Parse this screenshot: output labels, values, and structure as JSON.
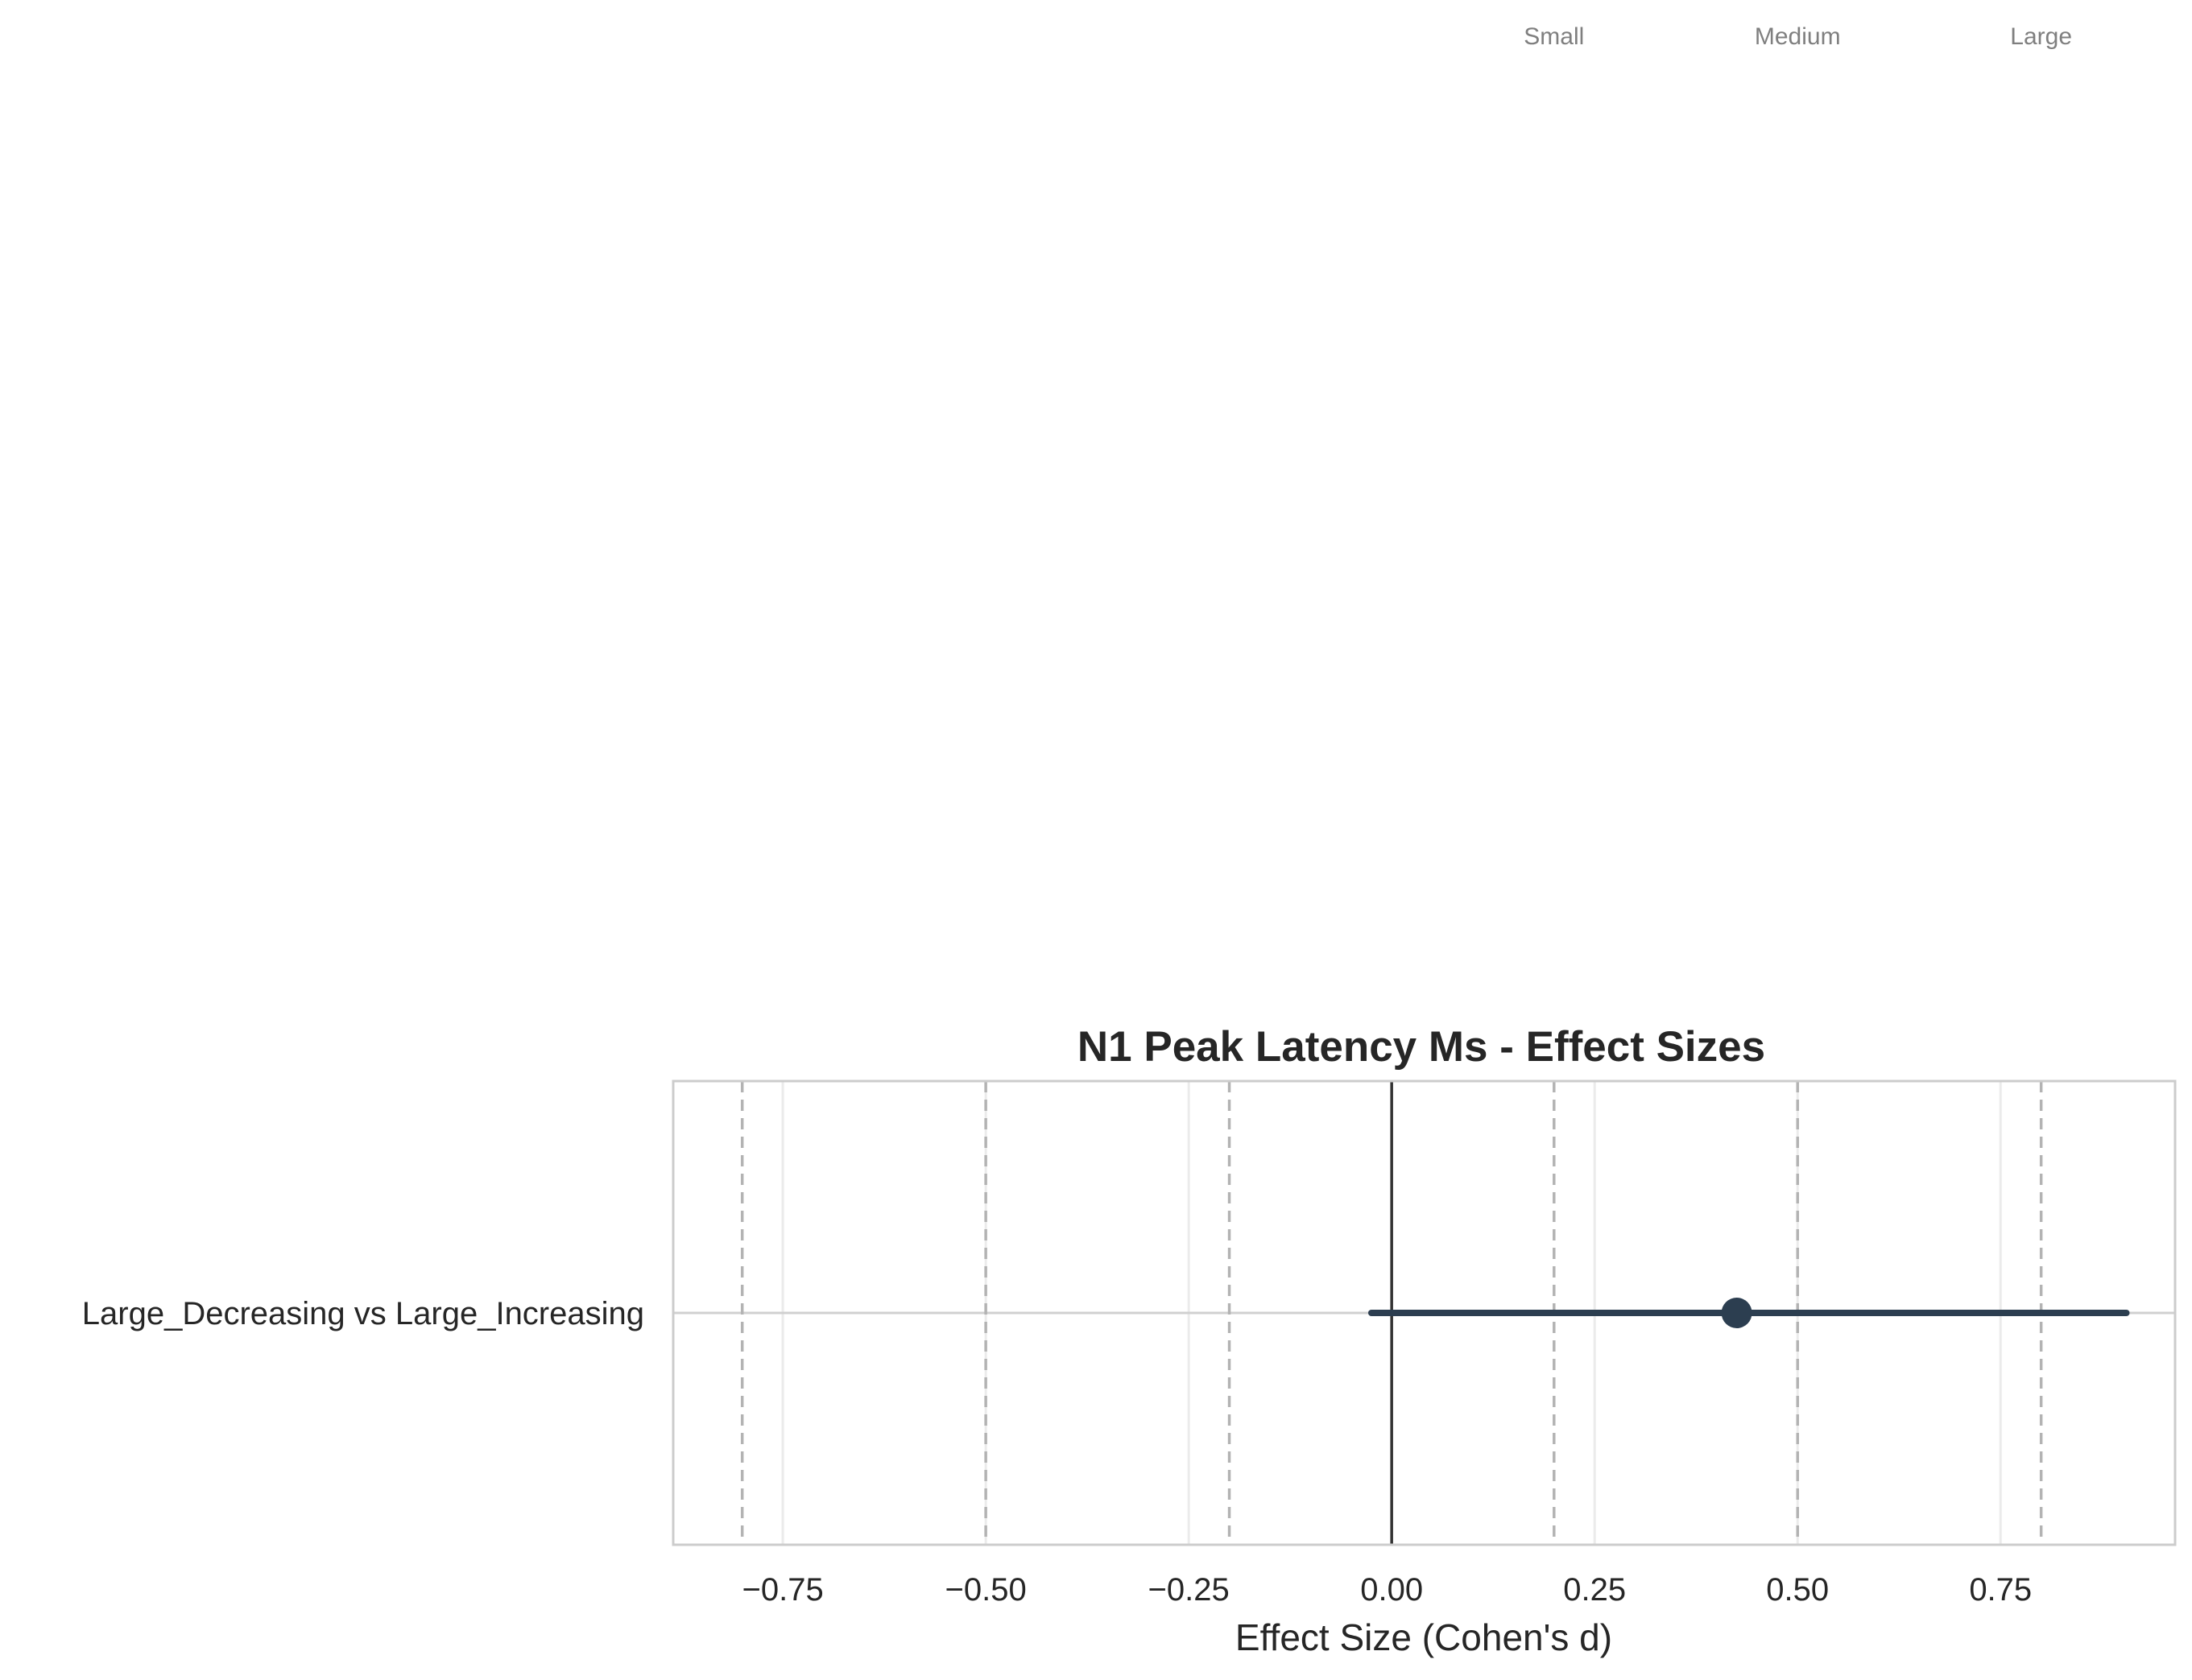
{
  "chart_data": {
    "type": "forest",
    "title": "N1 Peak Latency Ms - Effect Sizes",
    "xlabel": "Effect Size (Cohen's d)",
    "ylabel": "",
    "xlim": [
      -0.885,
      0.965
    ],
    "xticks": [
      -0.75,
      -0.5,
      -0.25,
      0.0,
      0.25,
      0.5,
      0.75
    ],
    "xtick_labels": [
      "−0.75",
      "−0.50",
      "−0.25",
      "0.00",
      "0.25",
      "0.50",
      "0.75"
    ],
    "grid": true,
    "comparisons": [
      {
        "label": "Large_Decreasing vs Large_Increasing",
        "d": 0.425,
        "ci_low": -0.025,
        "ci_high": 0.905
      }
    ],
    "zero_line": 0.0,
    "thresholds": [
      {
        "label": "Small",
        "value": 0.2
      },
      {
        "label": "Medium",
        "value": 0.5
      },
      {
        "label": "Large",
        "value": 0.8
      }
    ],
    "colors": {
      "point": "#2c3e50",
      "ci": "#2c3e50",
      "threshold": "#b3b3b3",
      "zero": "#333333",
      "grid": "#ebebeb",
      "frame": "#cccccc",
      "threshold_label": "#7f7f7f"
    }
  }
}
